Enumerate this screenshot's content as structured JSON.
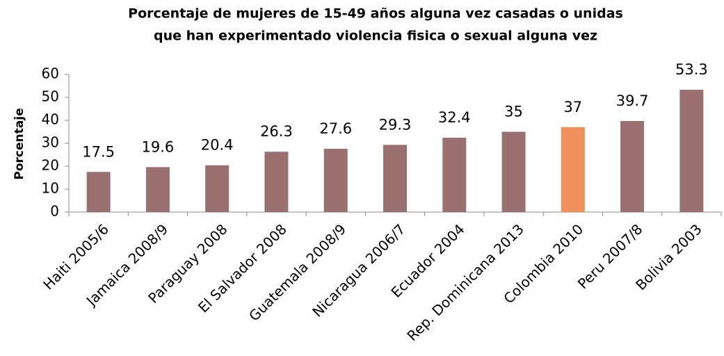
{
  "chart_data": {
    "type": "bar",
    "title": [
      "Porcentaje de mujeres  de 15-49 años alguna vez casadas o unidas",
      "que han experimentado violencia fisica o sexual alguna vez"
    ],
    "y_label": "Porcentaje",
    "categories": [
      "Haiti 2005/6",
      "Jamaica 2008/9",
      "Paraguay 2008",
      "El Salvador 2008",
      "Guatemala 2008/9",
      "Nicaragua 2006/7",
      "Ecuador 2004",
      "Rep. Dominicana 2013",
      "Colombia 2010",
      "Peru 2007/8",
      "Bolivia 2003"
    ],
    "values": [
      17.5,
      19.6,
      20.4,
      26.3,
      27.6,
      29.3,
      32.4,
      35,
      37,
      39.7,
      53.3
    ],
    "colors": [
      "#9b7070",
      "#9b7070",
      "#9b7070",
      "#9b7070",
      "#9b7070",
      "#9b7070",
      "#9b7070",
      "#9b7070",
      "#f0905a",
      "#9b7070",
      "#9b7070"
    ],
    "ylim": [
      0,
      60
    ],
    "yticks": [
      0,
      10,
      20,
      30,
      40,
      50,
      60
    ],
    "grid": false
  }
}
